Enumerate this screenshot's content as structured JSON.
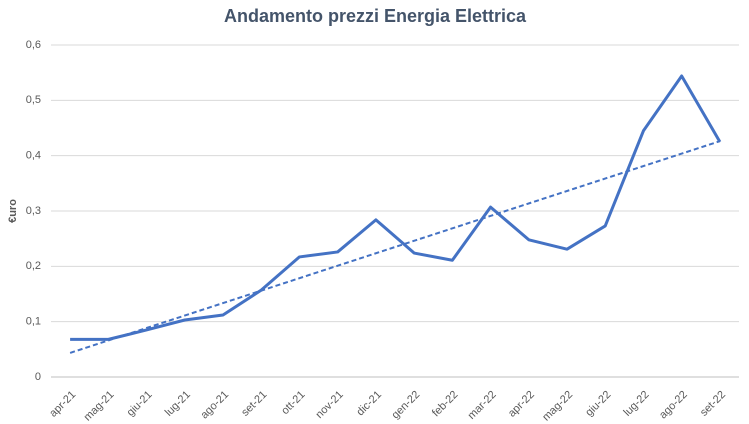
{
  "chart_data": {
    "type": "line",
    "title": "Andamento prezzi Energia Elettrica",
    "y_label": "€uro",
    "categories": [
      "apr-21",
      "mag-21",
      "giu-21",
      "lug-21",
      "ago-21",
      "set-21",
      "ott-21",
      "nov-21",
      "dic-21",
      "gen-22",
      "feb-22",
      "mar-22",
      "apr-22",
      "mag-22",
      "giu-22",
      "lug-22",
      "ago-22",
      "set-22"
    ],
    "series": [
      {
        "color": "#4472c4",
        "values": [
          0.068,
          0.068,
          0.085,
          0.103,
          0.112,
          0.157,
          0.217,
          0.226,
          0.284,
          0.224,
          0.211,
          0.307,
          0.248,
          0.231,
          0.273,
          0.445,
          0.544,
          0.425
        ]
      }
    ],
    "trendline": "linear",
    "ylim": [
      0,
      0.6
    ],
    "yticks": [
      0,
      {
        "value": 0.1,
        "label": "0,1"
      },
      {
        "value": 0.2,
        "label": "0,2"
      },
      {
        "value": 0.3,
        "label": "0,3"
      },
      {
        "value": 0.4,
        "label": "0,4"
      },
      {
        "value": 0.5,
        "label": "0,5"
      },
      {
        "value": 0.6,
        "label": "0,6"
      }
    ],
    "grid": true
  }
}
